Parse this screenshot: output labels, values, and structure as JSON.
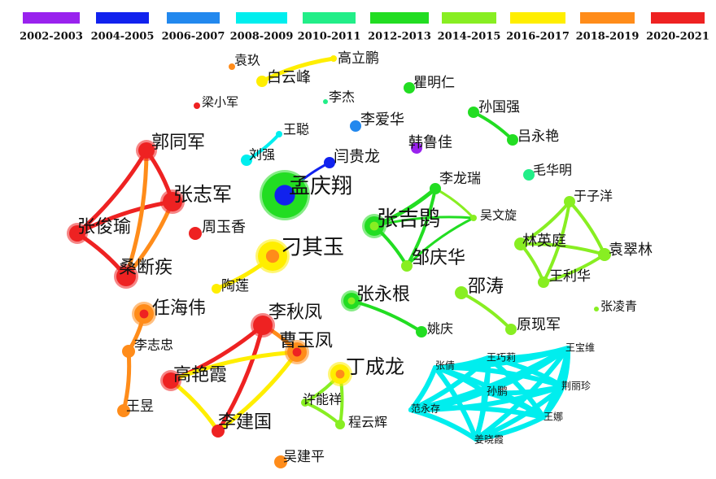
{
  "legend": [
    {
      "label": "2002-2003",
      "color": "#9922ee"
    },
    {
      "label": "2004-2005",
      "color": "#1122ee"
    },
    {
      "label": "2006-2007",
      "color": "#2288ee"
    },
    {
      "label": "2008-2009",
      "color": "#00eeee"
    },
    {
      "label": "2010-2011",
      "color": "#22ee88"
    },
    {
      "label": "2012-2013",
      "color": "#22dd22"
    },
    {
      "label": "2014-2015",
      "color": "#88ee22"
    },
    {
      "label": "2016-2017",
      "color": "#ffee00"
    },
    {
      "label": "2018-2019",
      "color": "#ff8c1a"
    },
    {
      "label": "2020-2021",
      "color": "#ee2222"
    }
  ],
  "nodes": [
    {
      "label": "袁玖"
    },
    {
      "label": "高立鹏"
    },
    {
      "label": "白云峰"
    },
    {
      "label": "瞿明仁"
    },
    {
      "label": "梁小军"
    },
    {
      "label": "李杰"
    },
    {
      "label": "李爱华"
    },
    {
      "label": "孙国强"
    },
    {
      "label": "王聪"
    },
    {
      "label": "韩鲁佳"
    },
    {
      "label": "吕永艳"
    },
    {
      "label": "郭同军"
    },
    {
      "label": "刘强"
    },
    {
      "label": "闫贵龙"
    },
    {
      "label": "毛华明"
    },
    {
      "label": "孟庆翔"
    },
    {
      "label": "李龙瑞"
    },
    {
      "label": "于子洋"
    },
    {
      "label": "张志军"
    },
    {
      "label": "张吉鹍"
    },
    {
      "label": "吴文旋"
    },
    {
      "label": "张俊瑜"
    },
    {
      "label": "周玉香"
    },
    {
      "label": "林英庭"
    },
    {
      "label": "袁翠林"
    },
    {
      "label": "刁其玉"
    },
    {
      "label": "邹庆华"
    },
    {
      "label": "桑断疾"
    },
    {
      "label": "王利华"
    },
    {
      "label": "陶莲"
    },
    {
      "label": "张永根"
    },
    {
      "label": "邵涛"
    },
    {
      "label": "任海伟"
    },
    {
      "label": "张凌青"
    },
    {
      "label": "李秋凤"
    },
    {
      "label": "姚庆"
    },
    {
      "label": "原现军"
    },
    {
      "label": "曹玉凤"
    },
    {
      "label": "李志忠"
    },
    {
      "label": "丁成龙"
    },
    {
      "label": "高艳霞"
    },
    {
      "label": "许能祥"
    },
    {
      "label": "王昱"
    },
    {
      "label": "李建国"
    },
    {
      "label": "程云辉"
    },
    {
      "label": "吴建平"
    },
    {
      "label": "王宝维"
    },
    {
      "label": "王巧莉"
    },
    {
      "label": "张倩"
    },
    {
      "label": "荆丽珍"
    },
    {
      "label": "孙鹏"
    },
    {
      "label": "范永存"
    },
    {
      "label": "王娜"
    },
    {
      "label": "姜晓霞"
    }
  ]
}
